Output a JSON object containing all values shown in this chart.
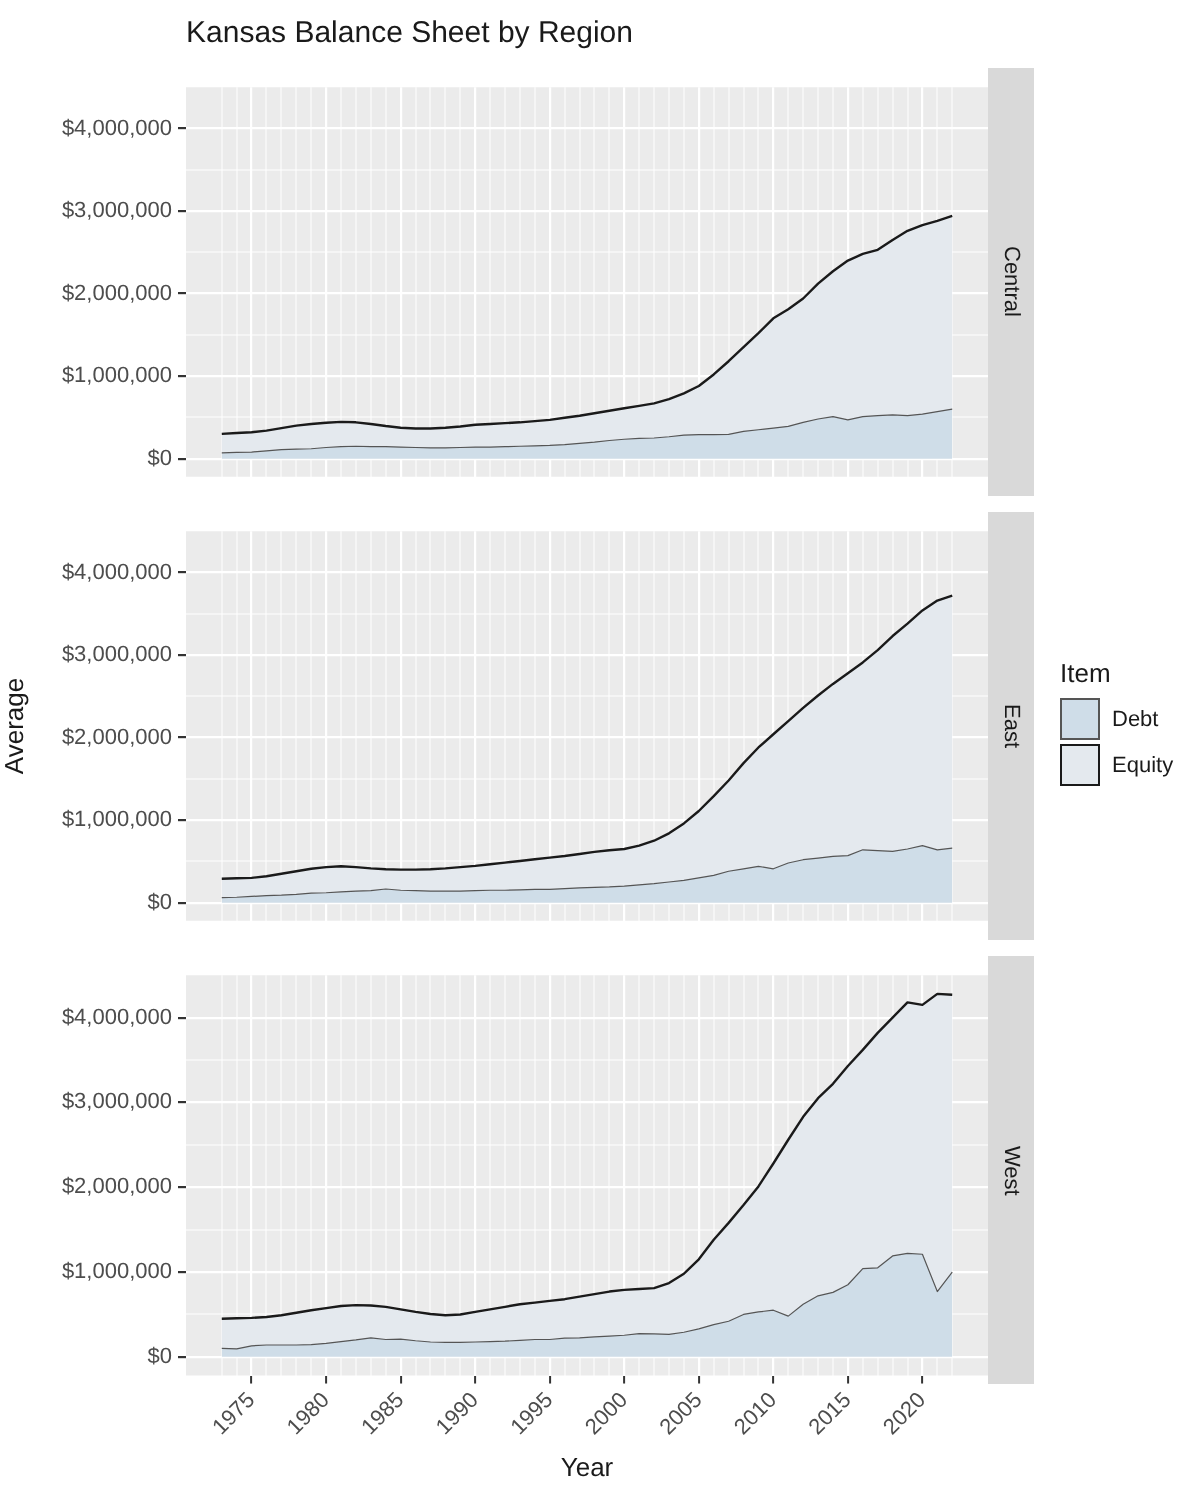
{
  "chart_data": [
    {
      "type": "area",
      "title": "Kansas Balance Sheet by Region",
      "subtitle": "Central",
      "stacked": true,
      "grid": true,
      "tick_labels": "y",
      "x": [
        1973,
        1974,
        1975,
        1976,
        1977,
        1978,
        1979,
        1980,
        1981,
        1982,
        1983,
        1984,
        1985,
        1986,
        1987,
        1988,
        1989,
        1990,
        1991,
        1992,
        1993,
        1994,
        1995,
        1996,
        1997,
        1998,
        1999,
        2000,
        2001,
        2002,
        2003,
        2004,
        2005,
        2006,
        2007,
        2008,
        2009,
        2010,
        2011,
        2012,
        2013,
        2014,
        2015,
        2016,
        2017,
        2018,
        2019,
        2020,
        2021,
        2022
      ],
      "xlim": [
        1970.6,
        2024.4
      ],
      "xticks": [
        {
          "value": 1973,
          "label": null
        },
        {
          "value": 1974,
          "label": null
        },
        1975,
        {
          "value": 1976,
          "label": null
        },
        {
          "value": 1977,
          "label": null
        },
        {
          "value": 1978,
          "label": null
        },
        {
          "value": 1979,
          "label": null
        },
        1980,
        {
          "value": 1981,
          "label": null
        },
        {
          "value": 1982,
          "label": null
        },
        {
          "value": 1983,
          "label": null
        },
        {
          "value": 1984,
          "label": null
        },
        1985,
        {
          "value": 1986,
          "label": null
        },
        {
          "value": 1987,
          "label": null
        },
        {
          "value": 1988,
          "label": null
        },
        {
          "value": 1989,
          "label": null
        },
        1990,
        {
          "value": 1991,
          "label": null
        },
        {
          "value": 1992,
          "label": null
        },
        {
          "value": 1993,
          "label": null
        },
        {
          "value": 1994,
          "label": null
        },
        1995,
        {
          "value": 1996,
          "label": null
        },
        {
          "value": 1997,
          "label": null
        },
        {
          "value": 1998,
          "label": null
        },
        {
          "value": 1999,
          "label": null
        },
        2000,
        {
          "value": 2001,
          "label": null
        },
        {
          "value": 2002,
          "label": null
        },
        {
          "value": 2003,
          "label": null
        },
        {
          "value": 2004,
          "label": null
        },
        2005,
        {
          "value": 2006,
          "label": null
        },
        {
          "value": 2007,
          "label": null
        },
        {
          "value": 2008,
          "label": null
        },
        {
          "value": 2009,
          "label": null
        },
        2010,
        {
          "value": 2011,
          "label": null
        },
        {
          "value": 2012,
          "label": null
        },
        {
          "value": 2013,
          "label": null
        },
        {
          "value": 2014,
          "label": null
        },
        2015,
        {
          "value": 2016,
          "label": null
        },
        {
          "value": 2017,
          "label": null
        },
        {
          "value": 2018,
          "label": null
        },
        {
          "value": 2019,
          "label": null
        },
        2020,
        {
          "value": 2021,
          "label": null
        },
        {
          "value": 2022,
          "label": null
        }
      ],
      "ylim": [
        -220000,
        4500000
      ],
      "yticks": [
        {
          "value": 0,
          "label": "$0"
        },
        {
          "value": 500000,
          "label": null
        },
        {
          "value": 1000000,
          "label": "$1,000,000"
        },
        {
          "value": 1500000,
          "label": null
        },
        {
          "value": 2000000,
          "label": "$2,000,000"
        },
        {
          "value": 2500000,
          "label": null
        },
        {
          "value": 3000000,
          "label": "$3,000,000"
        },
        {
          "value": 3500000,
          "label": null
        },
        {
          "value": 4000000,
          "label": "$4,000,000"
        }
      ],
      "series": [
        {
          "color": "#cfdde8",
          "values": [
            70000,
            75000,
            80000,
            95000,
            110000,
            115000,
            120000,
            135000,
            145000,
            150000,
            145000,
            145000,
            140000,
            135000,
            130000,
            130000,
            135000,
            140000,
            140000,
            145000,
            150000,
            155000,
            160000,
            170000,
            185000,
            200000,
            220000,
            235000,
            245000,
            250000,
            265000,
            285000,
            290000,
            290000,
            295000,
            330000,
            350000,
            370000,
            390000,
            440000,
            480000,
            510000,
            470000,
            510000,
            520000,
            530000,
            520000,
            540000,
            570000,
            600000
          ]
        },
        {
          "color": "#e4e9ee",
          "values": [
            230000,
            235000,
            240000,
            245000,
            260000,
            285000,
            300000,
            300000,
            300000,
            290000,
            275000,
            250000,
            235000,
            230000,
            235000,
            245000,
            255000,
            270000,
            280000,
            285000,
            290000,
            300000,
            310000,
            325000,
            335000,
            350000,
            360000,
            375000,
            395000,
            420000,
            455000,
            505000,
            590000,
            730000,
            885000,
            1020000,
            1170000,
            1330000,
            1420000,
            1500000,
            1640000,
            1760000,
            1930000,
            1970000,
            2010000,
            2120000,
            2240000,
            2290000,
            2310000,
            2340000
          ]
        }
      ]
    },
    {
      "type": "area",
      "subtitle": "East",
      "ylabel": "Average",
      "legend": "right",
      "legend_title": "Item",
      "stacked": true,
      "grid": true,
      "tick_labels": "y",
      "x": [
        1973,
        1974,
        1975,
        1976,
        1977,
        1978,
        1979,
        1980,
        1981,
        1982,
        1983,
        1984,
        1985,
        1986,
        1987,
        1988,
        1989,
        1990,
        1991,
        1992,
        1993,
        1994,
        1995,
        1996,
        1997,
        1998,
        1999,
        2000,
        2001,
        2002,
        2003,
        2004,
        2005,
        2006,
        2007,
        2008,
        2009,
        2010,
        2011,
        2012,
        2013,
        2014,
        2015,
        2016,
        2017,
        2018,
        2019,
        2020,
        2021,
        2022
      ],
      "xlim": [
        1970.6,
        2024.4
      ],
      "xticks": [
        {
          "value": 1973,
          "label": null
        },
        {
          "value": 1974,
          "label": null
        },
        1975,
        {
          "value": 1976,
          "label": null
        },
        {
          "value": 1977,
          "label": null
        },
        {
          "value": 1978,
          "label": null
        },
        {
          "value": 1979,
          "label": null
        },
        1980,
        {
          "value": 1981,
          "label": null
        },
        {
          "value": 1982,
          "label": null
        },
        {
          "value": 1983,
          "label": null
        },
        {
          "value": 1984,
          "label": null
        },
        1985,
        {
          "value": 1986,
          "label": null
        },
        {
          "value": 1987,
          "label": null
        },
        {
          "value": 1988,
          "label": null
        },
        {
          "value": 1989,
          "label": null
        },
        1990,
        {
          "value": 1991,
          "label": null
        },
        {
          "value": 1992,
          "label": null
        },
        {
          "value": 1993,
          "label": null
        },
        {
          "value": 1994,
          "label": null
        },
        1995,
        {
          "value": 1996,
          "label": null
        },
        {
          "value": 1997,
          "label": null
        },
        {
          "value": 1998,
          "label": null
        },
        {
          "value": 1999,
          "label": null
        },
        2000,
        {
          "value": 2001,
          "label": null
        },
        {
          "value": 2002,
          "label": null
        },
        {
          "value": 2003,
          "label": null
        },
        {
          "value": 2004,
          "label": null
        },
        2005,
        {
          "value": 2006,
          "label": null
        },
        {
          "value": 2007,
          "label": null
        },
        {
          "value": 2008,
          "label": null
        },
        {
          "value": 2009,
          "label": null
        },
        2010,
        {
          "value": 2011,
          "label": null
        },
        {
          "value": 2012,
          "label": null
        },
        {
          "value": 2013,
          "label": null
        },
        {
          "value": 2014,
          "label": null
        },
        2015,
        {
          "value": 2016,
          "label": null
        },
        {
          "value": 2017,
          "label": null
        },
        {
          "value": 2018,
          "label": null
        },
        {
          "value": 2019,
          "label": null
        },
        2020,
        {
          "value": 2021,
          "label": null
        },
        {
          "value": 2022,
          "label": null
        }
      ],
      "ylim": [
        -220000,
        4500000
      ],
      "yticks": [
        {
          "value": 0,
          "label": "$0"
        },
        {
          "value": 500000,
          "label": null
        },
        {
          "value": 1000000,
          "label": "$1,000,000"
        },
        {
          "value": 1500000,
          "label": null
        },
        {
          "value": 2000000,
          "label": "$2,000,000"
        },
        {
          "value": 2500000,
          "label": null
        },
        {
          "value": 3000000,
          "label": "$3,000,000"
        },
        {
          "value": 3500000,
          "label": null
        },
        {
          "value": 4000000,
          "label": "$4,000,000"
        }
      ],
      "series": [
        {
          "name": "Debt",
          "color": "#cfdde8",
          "values": [
            60000,
            65000,
            75000,
            85000,
            90000,
            100000,
            115000,
            120000,
            130000,
            140000,
            145000,
            165000,
            150000,
            145000,
            140000,
            140000,
            140000,
            145000,
            150000,
            150000,
            155000,
            160000,
            160000,
            170000,
            180000,
            185000,
            190000,
            200000,
            215000,
            230000,
            250000,
            270000,
            300000,
            330000,
            380000,
            410000,
            440000,
            410000,
            480000,
            520000,
            540000,
            560000,
            570000,
            640000,
            630000,
            620000,
            650000,
            690000,
            640000,
            660000
          ]
        },
        {
          "name": "Equity",
          "color": "#e4e9ee",
          "values": [
            230000,
            230000,
            225000,
            235000,
            260000,
            280000,
            295000,
            310000,
            310000,
            290000,
            270000,
            240000,
            250000,
            255000,
            265000,
            275000,
            290000,
            300000,
            315000,
            335000,
            350000,
            365000,
            385000,
            395000,
            410000,
            430000,
            445000,
            450000,
            475000,
            520000,
            590000,
            690000,
            810000,
            960000,
            1100000,
            1280000,
            1440000,
            1630000,
            1720000,
            1840000,
            1970000,
            2090000,
            2210000,
            2270000,
            2430000,
            2610000,
            2730000,
            2850000,
            3020000,
            3060000
          ]
        }
      ]
    },
    {
      "type": "area",
      "subtitle": "West",
      "xlabel": "Year",
      "stacked": true,
      "grid": true,
      "x": [
        1973,
        1974,
        1975,
        1976,
        1977,
        1978,
        1979,
        1980,
        1981,
        1982,
        1983,
        1984,
        1985,
        1986,
        1987,
        1988,
        1989,
        1990,
        1991,
        1992,
        1993,
        1994,
        1995,
        1996,
        1997,
        1998,
        1999,
        2000,
        2001,
        2002,
        2003,
        2004,
        2005,
        2006,
        2007,
        2008,
        2009,
        2010,
        2011,
        2012,
        2013,
        2014,
        2015,
        2016,
        2017,
        2018,
        2019,
        2020,
        2021,
        2022
      ],
      "xlim": [
        1970.6,
        2024.4
      ],
      "xticks": [
        {
          "value": 1973,
          "label": null
        },
        {
          "value": 1974,
          "label": null
        },
        1975,
        {
          "value": 1976,
          "label": null
        },
        {
          "value": 1977,
          "label": null
        },
        {
          "value": 1978,
          "label": null
        },
        {
          "value": 1979,
          "label": null
        },
        1980,
        {
          "value": 1981,
          "label": null
        },
        {
          "value": 1982,
          "label": null
        },
        {
          "value": 1983,
          "label": null
        },
        {
          "value": 1984,
          "label": null
        },
        1985,
        {
          "value": 1986,
          "label": null
        },
        {
          "value": 1987,
          "label": null
        },
        {
          "value": 1988,
          "label": null
        },
        {
          "value": 1989,
          "label": null
        },
        1990,
        {
          "value": 1991,
          "label": null
        },
        {
          "value": 1992,
          "label": null
        },
        {
          "value": 1993,
          "label": null
        },
        {
          "value": 1994,
          "label": null
        },
        1995,
        {
          "value": 1996,
          "label": null
        },
        {
          "value": 1997,
          "label": null
        },
        {
          "value": 1998,
          "label": null
        },
        {
          "value": 1999,
          "label": null
        },
        2000,
        {
          "value": 2001,
          "label": null
        },
        {
          "value": 2002,
          "label": null
        },
        {
          "value": 2003,
          "label": null
        },
        {
          "value": 2004,
          "label": null
        },
        2005,
        {
          "value": 2006,
          "label": null
        },
        {
          "value": 2007,
          "label": null
        },
        {
          "value": 2008,
          "label": null
        },
        {
          "value": 2009,
          "label": null
        },
        2010,
        {
          "value": 2011,
          "label": null
        },
        {
          "value": 2012,
          "label": null
        },
        {
          "value": 2013,
          "label": null
        },
        {
          "value": 2014,
          "label": null
        },
        2015,
        {
          "value": 2016,
          "label": null
        },
        {
          "value": 2017,
          "label": null
        },
        {
          "value": 2018,
          "label": null
        },
        {
          "value": 2019,
          "label": null
        },
        2020,
        {
          "value": 2021,
          "label": null
        },
        {
          "value": 2022,
          "label": null
        }
      ],
      "ylim": [
        -220000,
        4500000
      ],
      "yticks": [
        {
          "value": 0,
          "label": "$0"
        },
        {
          "value": 500000,
          "label": null
        },
        {
          "value": 1000000,
          "label": "$1,000,000"
        },
        {
          "value": 1500000,
          "label": null
        },
        {
          "value": 2000000,
          "label": "$2,000,000"
        },
        {
          "value": 2500000,
          "label": null
        },
        {
          "value": 3000000,
          "label": "$3,000,000"
        },
        {
          "value": 3500000,
          "label": null
        },
        {
          "value": 4000000,
          "label": "$4,000,000"
        }
      ],
      "series": [
        {
          "color": "#cfdde8",
          "values": [
            100000,
            95000,
            130000,
            140000,
            140000,
            140000,
            145000,
            160000,
            180000,
            200000,
            225000,
            205000,
            210000,
            190000,
            175000,
            170000,
            170000,
            175000,
            180000,
            185000,
            195000,
            205000,
            205000,
            220000,
            225000,
            235000,
            245000,
            255000,
            275000,
            270000,
            265000,
            290000,
            330000,
            380000,
            420000,
            500000,
            530000,
            550000,
            480000,
            620000,
            720000,
            760000,
            850000,
            1040000,
            1050000,
            1190000,
            1220000,
            1210000,
            770000,
            1000000
          ]
        },
        {
          "color": "#e4e9ee",
          "values": [
            350000,
            360000,
            330000,
            330000,
            350000,
            380000,
            405000,
            415000,
            420000,
            410000,
            380000,
            385000,
            350000,
            340000,
            330000,
            320000,
            330000,
            355000,
            380000,
            405000,
            425000,
            435000,
            455000,
            460000,
            485000,
            505000,
            525000,
            535000,
            525000,
            540000,
            605000,
            690000,
            820000,
            1000000,
            1160000,
            1290000,
            1480000,
            1730000,
            2080000,
            2210000,
            2330000,
            2460000,
            2580000,
            2580000,
            2770000,
            2810000,
            2960000,
            2940000,
            3510000,
            3270000
          ]
        }
      ]
    }
  ]
}
